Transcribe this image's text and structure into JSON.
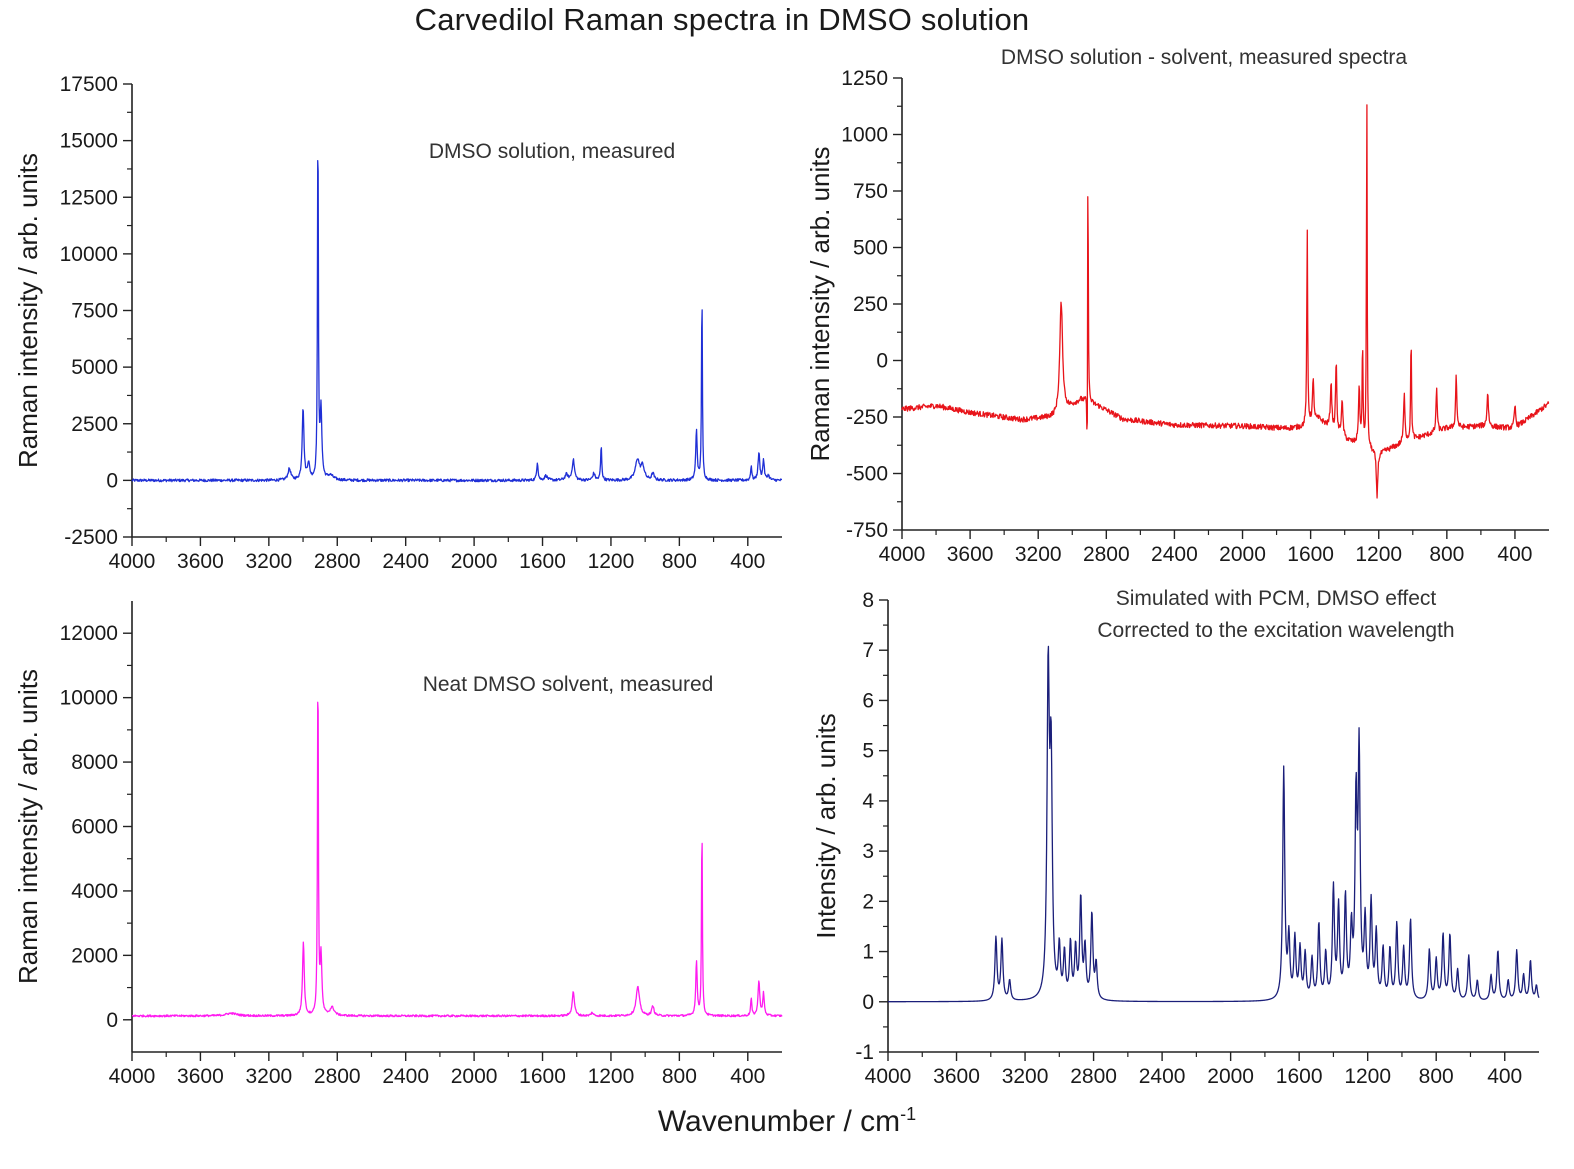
{
  "figure": {
    "title": "Carvedilol Raman spectra in DMSO solution",
    "xlabel_base": "Wavenumber / cm",
    "xlabel_exp": "-1"
  },
  "chart_data": [
    {
      "type": "line",
      "annotation": "DMSO solution, measured",
      "ylabel": "Raman intensity / arb. units",
      "color": "#1f2fd6",
      "xlim": [
        4000,
        200
      ],
      "ylim": [
        -2500,
        17500
      ],
      "xticks": [
        4000,
        3600,
        3200,
        2800,
        2400,
        2000,
        1600,
        1200,
        800,
        400
      ],
      "yticks": [
        -2500,
        0,
        2500,
        5000,
        7500,
        10000,
        12500,
        15000,
        17500
      ],
      "baseline": 0,
      "noise": 60,
      "peaks": [
        {
          "x": 3080,
          "h": 500,
          "w": 10
        },
        {
          "x": 3000,
          "h": 3200,
          "w": 6
        },
        {
          "x": 2968,
          "h": 700,
          "w": 8
        },
        {
          "x": 2913,
          "h": 16300,
          "w": 3
        },
        {
          "x": 2895,
          "h": 3000,
          "w": 6
        },
        {
          "x": 2840,
          "h": 200,
          "w": 20
        },
        {
          "x": 1630,
          "h": 800,
          "w": 5
        },
        {
          "x": 1580,
          "h": 200,
          "w": 10
        },
        {
          "x": 1460,
          "h": 250,
          "w": 10
        },
        {
          "x": 1420,
          "h": 900,
          "w": 8
        },
        {
          "x": 1300,
          "h": 300,
          "w": 8
        },
        {
          "x": 1257,
          "h": 1500,
          "w": 4
        },
        {
          "x": 1045,
          "h": 900,
          "w": 14
        },
        {
          "x": 1015,
          "h": 600,
          "w": 12
        },
        {
          "x": 955,
          "h": 300,
          "w": 8
        },
        {
          "x": 700,
          "h": 2200,
          "w": 5
        },
        {
          "x": 668,
          "h": 8500,
          "w": 3
        },
        {
          "x": 380,
          "h": 650,
          "w": 4
        },
        {
          "x": 335,
          "h": 1200,
          "w": 6
        },
        {
          "x": 308,
          "h": 900,
          "w": 5
        },
        {
          "x": 280,
          "h": 200,
          "w": 8
        }
      ]
    },
    {
      "type": "line",
      "annotation": "DMSO solution - solvent, measured spectra",
      "ylabel": "Raman intensity / arb. units",
      "color": "#e8141a",
      "xlim": [
        4000,
        200
      ],
      "ylim": [
        -750,
        1250
      ],
      "xticks": [
        4000,
        3600,
        3200,
        2800,
        2400,
        2000,
        1600,
        1200,
        800,
        400
      ],
      "yticks": [
        -750,
        -500,
        -250,
        0,
        250,
        500,
        750,
        1000,
        1250
      ],
      "baseline_points": [
        [
          4000,
          -215
        ],
        [
          3800,
          -200
        ],
        [
          3600,
          -230
        ],
        [
          3300,
          -262
        ],
        [
          3100,
          -250
        ],
        [
          2950,
          -175
        ],
        [
          2850,
          -200
        ],
        [
          2700,
          -260
        ],
        [
          2400,
          -285
        ],
        [
          2000,
          -290
        ],
        [
          1750,
          -300
        ],
        [
          1650,
          -295
        ],
        [
          1550,
          -260
        ],
        [
          1400,
          -350
        ],
        [
          1200,
          -410
        ],
        [
          1000,
          -350
        ],
        [
          800,
          -300
        ],
        [
          600,
          -290
        ],
        [
          400,
          -300
        ],
        [
          200,
          -190
        ]
      ],
      "noise": 12,
      "peaks": [
        {
          "x": 3065,
          "h": 490,
          "w": 10
        },
        {
          "x": 2912,
          "h": -520,
          "w": 2.5
        },
        {
          "x": 2908,
          "h": 1230,
          "w": 2.5
        },
        {
          "x": 1620,
          "h": 870,
          "w": 3
        },
        {
          "x": 1585,
          "h": 180,
          "w": 5
        },
        {
          "x": 1480,
          "h": 200,
          "w": 5
        },
        {
          "x": 1450,
          "h": 320,
          "w": 4
        },
        {
          "x": 1415,
          "h": 150,
          "w": 6
        },
        {
          "x": 1315,
          "h": 250,
          "w": 5
        },
        {
          "x": 1295,
          "h": 450,
          "w": 3
        },
        {
          "x": 1270,
          "h": 1600,
          "w": 2.5
        },
        {
          "x": 1210,
          "h": -200,
          "w": 5
        },
        {
          "x": 1050,
          "h": 210,
          "w": 5
        },
        {
          "x": 1010,
          "h": 460,
          "w": 3
        },
        {
          "x": 860,
          "h": 200,
          "w": 4
        },
        {
          "x": 745,
          "h": 240,
          "w": 4
        },
        {
          "x": 560,
          "h": 150,
          "w": 5
        },
        {
          "x": 400,
          "h": 100,
          "w": 5
        }
      ]
    },
    {
      "type": "line",
      "annotation": "Neat DMSO solvent, measured",
      "ylabel": "Raman intensity / arb. units",
      "color": "#ff1bf0",
      "xlim": [
        4000,
        200
      ],
      "ylim": [
        -1000,
        13000
      ],
      "xticks": [
        4000,
        3600,
        3200,
        2800,
        2400,
        2000,
        1600,
        1200,
        800,
        400
      ],
      "yticks": [
        0,
        2000,
        4000,
        6000,
        8000,
        10000,
        12000
      ],
      "baseline": 120,
      "noise": 30,
      "peaks": [
        {
          "x": 3420,
          "h": 80,
          "w": 40
        },
        {
          "x": 2998,
          "h": 2300,
          "w": 6
        },
        {
          "x": 2913,
          "h": 11300,
          "w": 3
        },
        {
          "x": 2895,
          "h": 1800,
          "w": 6
        },
        {
          "x": 2830,
          "h": 250,
          "w": 15
        },
        {
          "x": 1420,
          "h": 750,
          "w": 8
        },
        {
          "x": 1310,
          "h": 100,
          "w": 8
        },
        {
          "x": 1043,
          "h": 900,
          "w": 12
        },
        {
          "x": 955,
          "h": 300,
          "w": 8
        },
        {
          "x": 700,
          "h": 1700,
          "w": 5
        },
        {
          "x": 668,
          "h": 6100,
          "w": 3
        },
        {
          "x": 380,
          "h": 550,
          "w": 4
        },
        {
          "x": 335,
          "h": 1100,
          "w": 6
        },
        {
          "x": 308,
          "h": 700,
          "w": 5
        }
      ]
    },
    {
      "type": "line",
      "annotation": [
        "Simulated with PCM, DMSO effect",
        "Corrected to the excitation wavelength"
      ],
      "ylabel": "Intensity / arb. units",
      "color": "#1b1f7a",
      "xlim": [
        4000,
        200
      ],
      "ylim": [
        -1,
        8
      ],
      "xticks": [
        4000,
        3600,
        3200,
        2800,
        2400,
        2000,
        1600,
        1200,
        800,
        400
      ],
      "yticks": [
        -1,
        0,
        1,
        2,
        3,
        4,
        5,
        6,
        7,
        8
      ],
      "baseline": 0,
      "noise": 0,
      "peaks": [
        {
          "x": 3370,
          "h": 1.25,
          "w": 7
        },
        {
          "x": 3335,
          "h": 1.2,
          "w": 7
        },
        {
          "x": 3290,
          "h": 0.4,
          "w": 7
        },
        {
          "x": 3065,
          "h": 6.3,
          "w": 8
        },
        {
          "x": 3048,
          "h": 4.5,
          "w": 8
        },
        {
          "x": 3000,
          "h": 1.0,
          "w": 7
        },
        {
          "x": 2970,
          "h": 0.9,
          "w": 7
        },
        {
          "x": 2935,
          "h": 1.1,
          "w": 7
        },
        {
          "x": 2905,
          "h": 1.0,
          "w": 7
        },
        {
          "x": 2875,
          "h": 2.0,
          "w": 7
        },
        {
          "x": 2850,
          "h": 1.0,
          "w": 7
        },
        {
          "x": 2810,
          "h": 1.7,
          "w": 7
        },
        {
          "x": 2785,
          "h": 0.7,
          "w": 7
        },
        {
          "x": 1690,
          "h": 4.6,
          "w": 7
        },
        {
          "x": 1660,
          "h": 1.2,
          "w": 7
        },
        {
          "x": 1625,
          "h": 1.2,
          "w": 7
        },
        {
          "x": 1595,
          "h": 1.0,
          "w": 7
        },
        {
          "x": 1565,
          "h": 0.9,
          "w": 7
        },
        {
          "x": 1525,
          "h": 0.8,
          "w": 7
        },
        {
          "x": 1485,
          "h": 1.5,
          "w": 7
        },
        {
          "x": 1445,
          "h": 0.9,
          "w": 7
        },
        {
          "x": 1400,
          "h": 2.2,
          "w": 7
        },
        {
          "x": 1370,
          "h": 1.8,
          "w": 7
        },
        {
          "x": 1330,
          "h": 2.0,
          "w": 7
        },
        {
          "x": 1295,
          "h": 1.3,
          "w": 7
        },
        {
          "x": 1268,
          "h": 3.8,
          "w": 7
        },
        {
          "x": 1250,
          "h": 4.8,
          "w": 7
        },
        {
          "x": 1215,
          "h": 1.5,
          "w": 7
        },
        {
          "x": 1180,
          "h": 1.9,
          "w": 7
        },
        {
          "x": 1150,
          "h": 1.3,
          "w": 7
        },
        {
          "x": 1110,
          "h": 1.0,
          "w": 7
        },
        {
          "x": 1070,
          "h": 1.0,
          "w": 7
        },
        {
          "x": 1030,
          "h": 1.5,
          "w": 7
        },
        {
          "x": 990,
          "h": 1.0,
          "w": 7
        },
        {
          "x": 950,
          "h": 1.6,
          "w": 7
        },
        {
          "x": 840,
          "h": 1.0,
          "w": 7
        },
        {
          "x": 800,
          "h": 0.8,
          "w": 7
        },
        {
          "x": 760,
          "h": 1.3,
          "w": 7
        },
        {
          "x": 720,
          "h": 1.3,
          "w": 7
        },
        {
          "x": 675,
          "h": 0.6,
          "w": 7
        },
        {
          "x": 610,
          "h": 0.9,
          "w": 7
        },
        {
          "x": 560,
          "h": 0.4,
          "w": 7
        },
        {
          "x": 480,
          "h": 0.5,
          "w": 7
        },
        {
          "x": 440,
          "h": 1.0,
          "w": 7
        },
        {
          "x": 380,
          "h": 0.4,
          "w": 7
        },
        {
          "x": 330,
          "h": 1.0,
          "w": 7
        },
        {
          "x": 290,
          "h": 0.5,
          "w": 7
        },
        {
          "x": 250,
          "h": 0.8,
          "w": 7
        },
        {
          "x": 215,
          "h": 0.3,
          "w": 7
        }
      ]
    }
  ]
}
